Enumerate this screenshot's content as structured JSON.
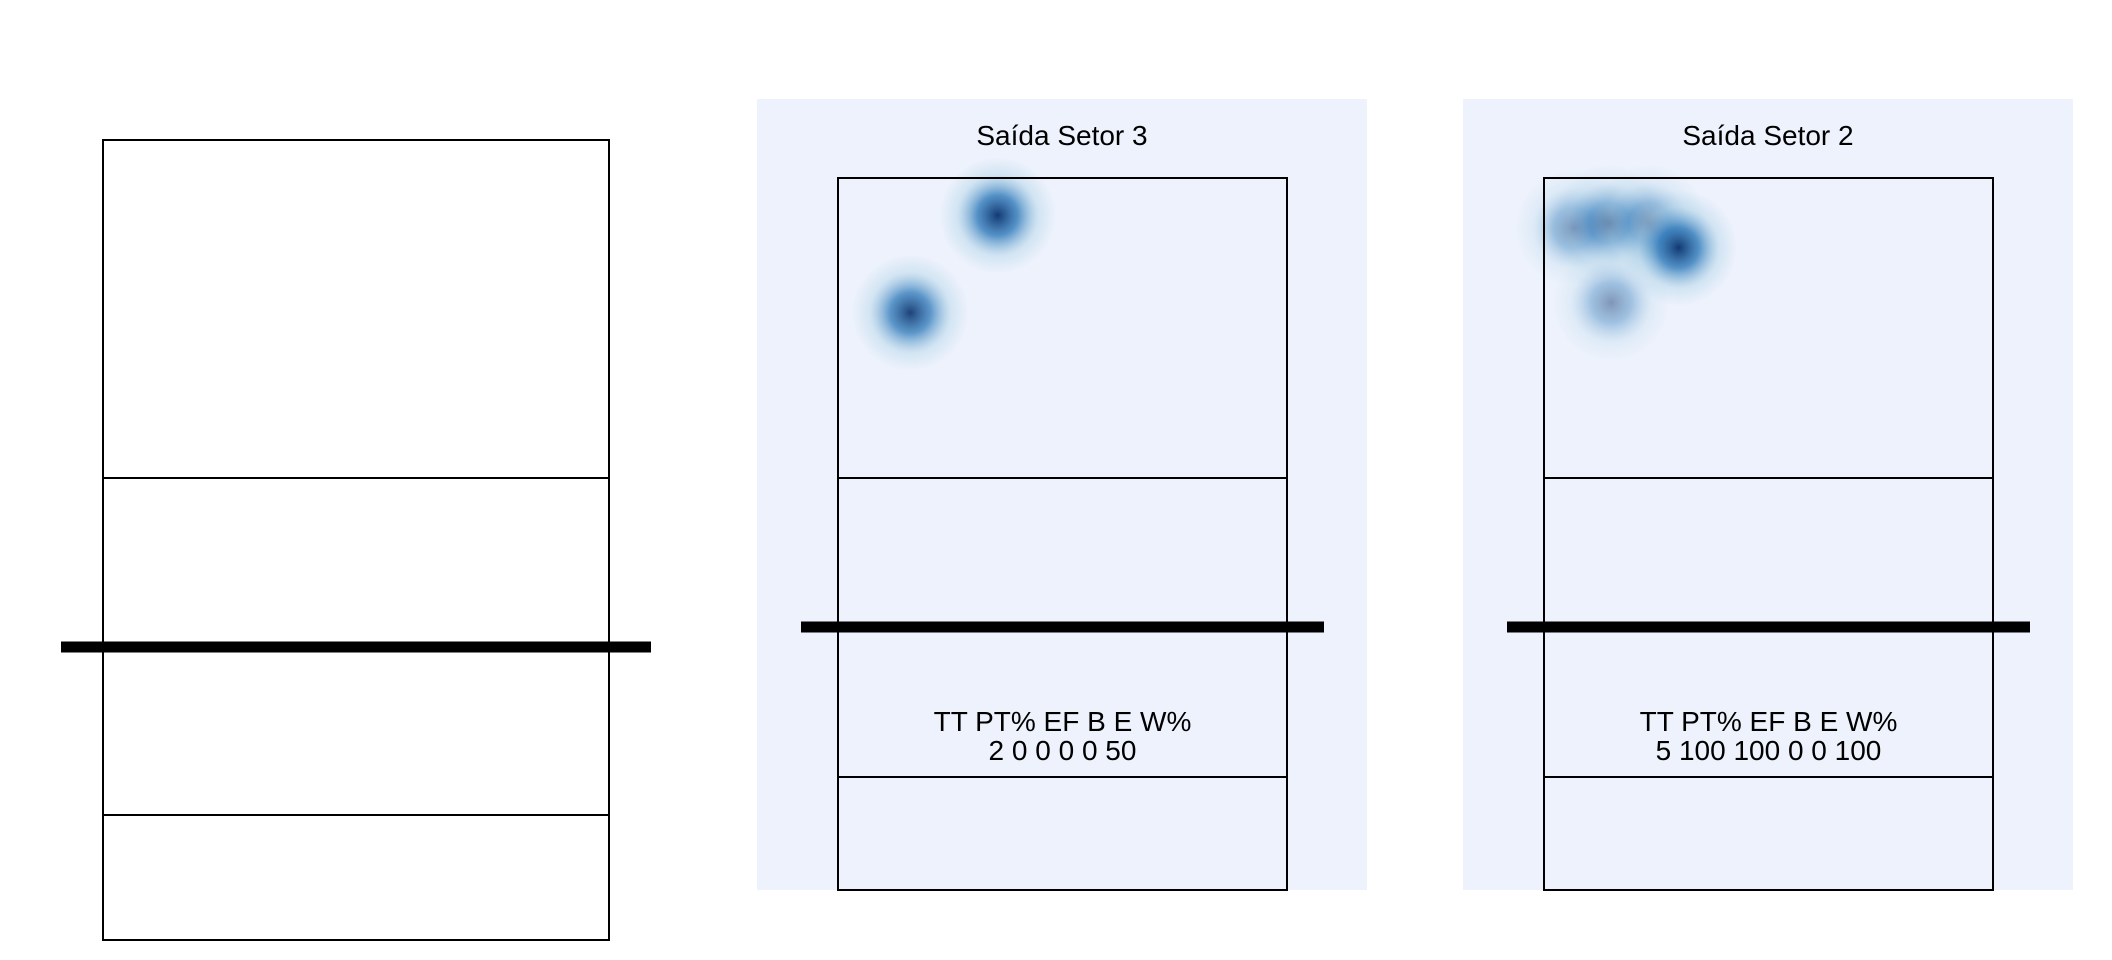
{
  "colors": {
    "panel_background": "#edf2fc",
    "page_background": "#ffffff",
    "court_line": "#000000",
    "heat_low": "#9ecae1",
    "heat_high": "#08306b"
  },
  "chart_data": [
    {
      "type": "heatmap",
      "title": "",
      "panel_background": false,
      "points": [],
      "stats": null
    },
    {
      "type": "heatmap",
      "title": "Saída Setor 3",
      "panel_background": true,
      "points": [
        {
          "x": 1.45,
          "y": 15.3,
          "intensity": 0.95
        },
        {
          "x": 3.2,
          "y": 17.25,
          "intensity": 1.0
        }
      ],
      "stats": {
        "headers": [
          "TT",
          "PT%",
          "EF",
          "B",
          "E",
          "W%"
        ],
        "values": [
          "2",
          "0",
          "0",
          "0",
          "0",
          "50"
        ]
      }
    },
    {
      "type": "heatmap",
      "title": "Saída Setor 2",
      "panel_background": true,
      "points": [
        {
          "x": 0.6,
          "y": 17.0,
          "intensity": 0.55
        },
        {
          "x": 1.3,
          "y": 17.1,
          "intensity": 0.6
        },
        {
          "x": 2.1,
          "y": 17.1,
          "intensity": 0.55
        },
        {
          "x": 1.35,
          "y": 15.5,
          "intensity": 0.5
        },
        {
          "x": 2.7,
          "y": 16.6,
          "intensity": 1.0
        }
      ],
      "stats": {
        "headers": [
          "TT",
          "PT%",
          "EF",
          "B",
          "E",
          "W%"
        ],
        "values": [
          "5",
          "100",
          "100",
          "0",
          "0",
          "100"
        ]
      }
    }
  ]
}
